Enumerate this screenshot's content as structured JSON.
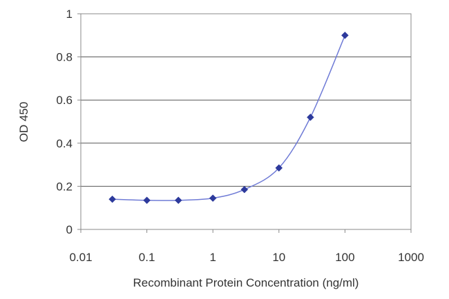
{
  "chart_data": {
    "type": "line",
    "title": "",
    "xlabel": "Recombinant Protein Concentration (ng/ml)",
    "ylabel": "OD 450",
    "xscale": "log",
    "xlim": [
      0.01,
      1000
    ],
    "ylim": [
      0,
      1
    ],
    "x_ticks": [
      0.01,
      0.1,
      1,
      10,
      100,
      1000
    ],
    "x_tick_labels": [
      "0.01",
      "0.1",
      "1",
      "10",
      "100",
      "1000"
    ],
    "y_ticks": [
      0,
      0.2,
      0.4,
      0.6,
      0.8,
      1
    ],
    "y_tick_labels": [
      "0",
      "0.2",
      "0.4",
      "0.6",
      "0.8",
      "1"
    ],
    "grid": "horizontal",
    "legend": "none",
    "series": [
      {
        "x": [
          0.03,
          0.1,
          0.3,
          1,
          3,
          10,
          30,
          100
        ],
        "y": [
          0.14,
          0.135,
          0.135,
          0.145,
          0.185,
          0.285,
          0.52,
          0.9
        ],
        "color": "#2d3a9c"
      }
    ]
  }
}
